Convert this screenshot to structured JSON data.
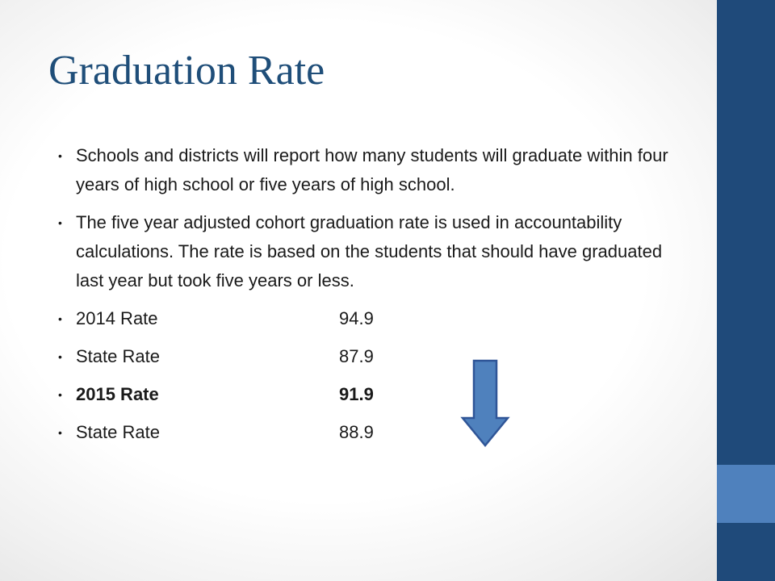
{
  "slide": {
    "title": "Graduation Rate",
    "paragraphs": [
      "Schools and districts will report how many students will graduate within four years of high school or five years of high school.",
      "The five year adjusted cohort graduation rate is used in accountability calculations.  The rate is based on the students that should have graduated last year but took five years or less."
    ],
    "rates": [
      {
        "label": "2014 Rate",
        "value": "94.9",
        "bold": false
      },
      {
        "label": "State Rate",
        "value": "87.9",
        "bold": false
      },
      {
        "label": "2015 Rate",
        "value": "91.9",
        "bold": true
      },
      {
        "label": "State Rate",
        "value": "88.9",
        "bold": false
      }
    ],
    "bullet_glyph": "•",
    "arrow_icon": "down-arrow-icon"
  },
  "theme": {
    "title_color": "#1f4e79",
    "bar_dark": "#1f4a7a",
    "bar_light": "#4f81bd",
    "arrow_fill": "#4f81bd",
    "arrow_stroke": "#2f5597"
  }
}
